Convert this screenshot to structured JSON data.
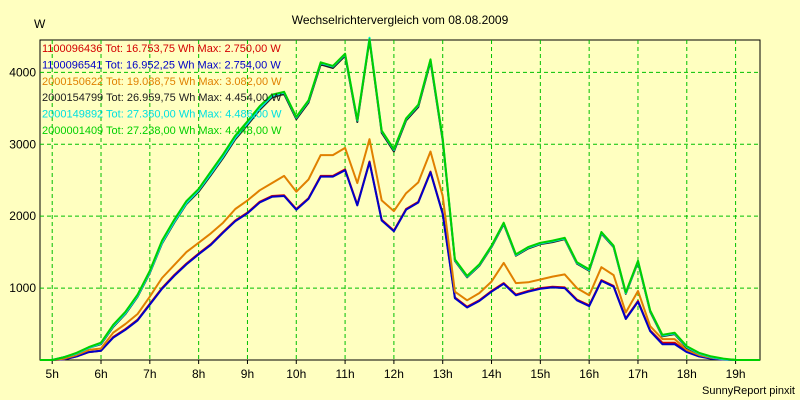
{
  "chart_data": {
    "type": "line",
    "title": "Wechselrichtervergleich vom 08.08.2009",
    "ylabel": "W",
    "xlabel": "",
    "footer": "SunnyReport pinxit",
    "ylim": [
      0,
      4450
    ],
    "xlim": [
      4.75,
      19.5
    ],
    "yticks": [
      1000,
      2000,
      3000,
      4000
    ],
    "xticks": [
      5,
      6,
      7,
      8,
      9,
      10,
      11,
      12,
      13,
      14,
      15,
      16,
      17,
      18,
      19
    ],
    "xtick_labels": [
      "5h",
      "6h",
      "7h",
      "8h",
      "9h",
      "10h",
      "11h",
      "12h",
      "13h",
      "14h",
      "15h",
      "16h",
      "17h",
      "18h",
      "19h"
    ],
    "grid": true,
    "legend_position": "top-left",
    "legend": [
      "1100096436 Tot: 16.753,75 Wh Max: 2.750,00 W",
      "1100096541 Tot: 16.952,25 Wh Max: 2.754,00 W",
      "2000150622 Tot: 19.088,75 Wh Max: 3.082,00 W",
      "2000154799 Tot: 26.959,75 Wh Max: 4.454,00 W",
      "2000149892 Tot: 27.360,00 Wh Max: 4.486,00 W",
      "2000001409 Tot: 27.238,00 Wh Max: 4.448,00 W"
    ],
    "colors": [
      "#d40000",
      "#0000c8",
      "#e08000",
      "#202020",
      "#00e0e0",
      "#00d000"
    ],
    "x": [
      4.75,
      5.0,
      5.25,
      5.5,
      5.75,
      6.0,
      6.25,
      6.5,
      6.75,
      7.0,
      7.25,
      7.5,
      7.75,
      8.0,
      8.25,
      8.5,
      8.75,
      9.0,
      9.25,
      9.5,
      9.75,
      10.0,
      10.25,
      10.5,
      10.75,
      11.0,
      11.25,
      11.5,
      11.75,
      12.0,
      12.25,
      12.5,
      12.75,
      13.0,
      13.25,
      13.5,
      13.75,
      14.0,
      14.25,
      14.5,
      14.75,
      15.0,
      15.25,
      15.5,
      15.75,
      16.0,
      16.25,
      16.5,
      16.75,
      17.0,
      17.25,
      17.5,
      17.75,
      18.0,
      18.25,
      18.5,
      18.75,
      19.0,
      19.25,
      19.5
    ],
    "series": [
      {
        "name": "1100096436",
        "values": [
          0,
          0,
          10,
          50,
          110,
          130,
          320,
          430,
          560,
          780,
          1000,
          1180,
          1340,
          1480,
          1610,
          1780,
          1940,
          2050,
          2200,
          2280,
          2290,
          2100,
          2250,
          2560,
          2560,
          2650,
          2160,
          2760,
          1950,
          1800,
          2100,
          2200,
          2620,
          2040,
          870,
          740,
          830,
          960,
          1070,
          910,
          960,
          1000,
          1020,
          1010,
          840,
          760,
          1110,
          1030,
          580,
          820,
          410,
          240,
          240,
          120,
          60,
          30,
          10,
          0,
          0,
          0
        ]
      },
      {
        "name": "1100096541",
        "values": [
          0,
          0,
          10,
          50,
          110,
          130,
          310,
          420,
          550,
          770,
          990,
          1170,
          1330,
          1470,
          1600,
          1770,
          1930,
          2040,
          2190,
          2270,
          2280,
          2090,
          2240,
          2550,
          2550,
          2640,
          2150,
          2750,
          1940,
          1790,
          2090,
          2190,
          2610,
          2030,
          860,
          730,
          820,
          950,
          1060,
          900,
          950,
          990,
          1010,
          1000,
          830,
          750,
          1100,
          1020,
          570,
          810,
          400,
          220,
          220,
          110,
          50,
          20,
          5,
          0,
          0,
          0
        ]
      },
      {
        "name": "2000150622",
        "values": [
          0,
          0,
          20,
          70,
          140,
          160,
          380,
          500,
          640,
          880,
          1140,
          1320,
          1500,
          1630,
          1760,
          1910,
          2100,
          2220,
          2360,
          2460,
          2560,
          2340,
          2510,
          2850,
          2850,
          2950,
          2460,
          3070,
          2220,
          2070,
          2320,
          2470,
          2900,
          2280,
          950,
          830,
          930,
          1090,
          1350,
          1070,
          1080,
          1120,
          1160,
          1190,
          1000,
          900,
          1290,
          1180,
          660,
          960,
          470,
          290,
          290,
          140,
          70,
          30,
          10,
          0,
          0,
          0
        ]
      },
      {
        "name": "2000154799",
        "values": [
          0,
          0,
          40,
          90,
          170,
          220,
          460,
          640,
          880,
          1210,
          1620,
          1910,
          2170,
          2340,
          2570,
          2810,
          3070,
          3270,
          3480,
          3650,
          3700,
          3350,
          3580,
          4110,
          4060,
          4230,
          3310,
          4450,
          3160,
          2900,
          3330,
          3520,
          4150,
          3050,
          1380,
          1150,
          1310,
          1570,
          1890,
          1450,
          1550,
          1610,
          1640,
          1680,
          1340,
          1240,
          1760,
          1570,
          920,
          1360,
          670,
          330,
          360,
          170,
          90,
          40,
          10,
          0,
          0,
          0
        ]
      },
      {
        "name": "2000149892",
        "values": [
          0,
          0,
          40,
          90,
          170,
          230,
          470,
          650,
          890,
          1220,
          1630,
          1920,
          2180,
          2360,
          2590,
          2830,
          3090,
          3290,
          3500,
          3670,
          3720,
          3370,
          3600,
          4130,
          4080,
          4250,
          3330,
          4480,
          3180,
          2920,
          3350,
          3540,
          4170,
          3070,
          1390,
          1160,
          1320,
          1580,
          1900,
          1460,
          1560,
          1620,
          1650,
          1690,
          1350,
          1250,
          1770,
          1580,
          930,
          1370,
          680,
          340,
          370,
          180,
          90,
          40,
          10,
          0,
          0,
          0
        ]
      },
      {
        "name": "2000001409",
        "values": [
          0,
          0,
          40,
          100,
          180,
          240,
          490,
          670,
          910,
          1240,
          1660,
          1950,
          2210,
          2380,
          2620,
          2860,
          3120,
          3320,
          3530,
          3690,
          3730,
          3380,
          3610,
          4140,
          4090,
          4260,
          3340,
          4460,
          3190,
          2930,
          3360,
          3550,
          4180,
          3080,
          1400,
          1170,
          1330,
          1590,
          1910,
          1470,
          1570,
          1630,
          1660,
          1700,
          1360,
          1260,
          1780,
          1590,
          940,
          1380,
          690,
          350,
          380,
          190,
          100,
          50,
          20,
          0,
          0,
          0
        ]
      }
    ]
  }
}
